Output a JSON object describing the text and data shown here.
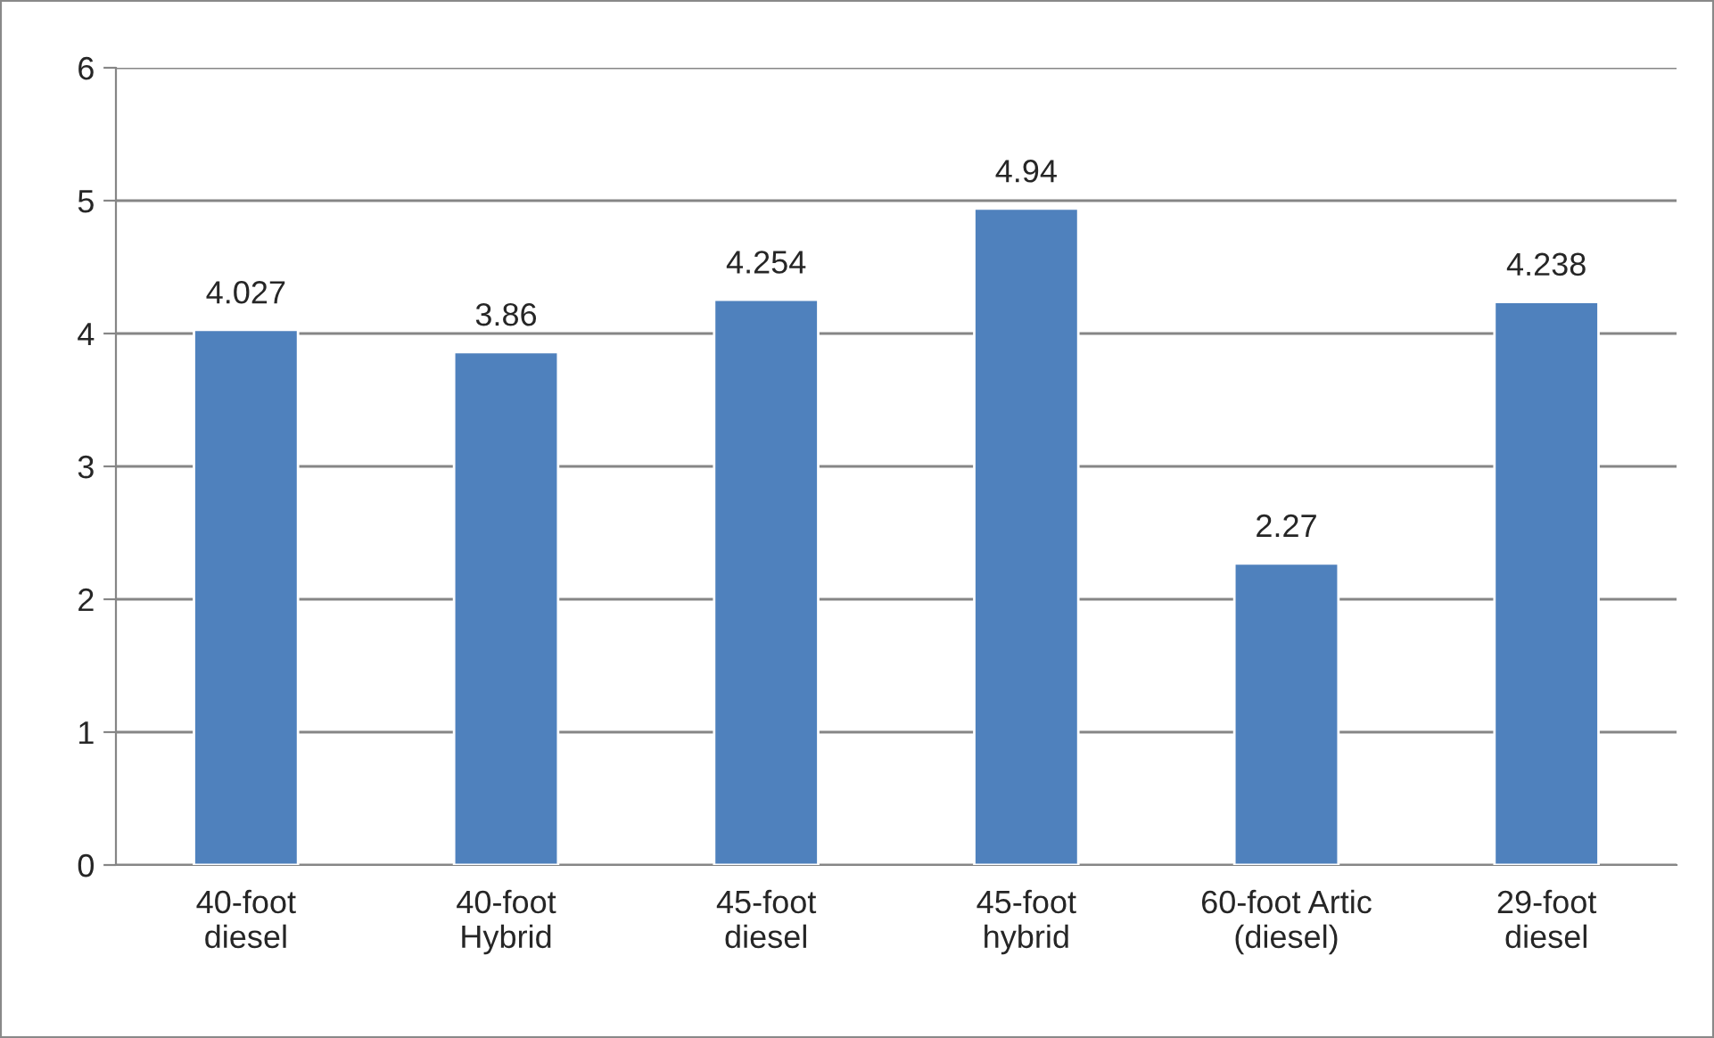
{
  "chart_data": {
    "type": "bar",
    "categories": [
      "40-foot\ndiesel",
      "40-foot\nHybrid",
      "45-foot\ndiesel",
      "45-foot\nhybrid",
      "60-foot Artic\n(diesel)",
      "29-foot\ndiesel"
    ],
    "values": [
      4.027,
      3.86,
      4.254,
      4.94,
      2.27,
      4.238
    ],
    "color": "#4f81bd",
    "ylim": [
      0,
      6
    ],
    "yticks": [
      0,
      1,
      2,
      3,
      4,
      5,
      6
    ],
    "grid": "y",
    "data_labels": true,
    "legend": false
  }
}
